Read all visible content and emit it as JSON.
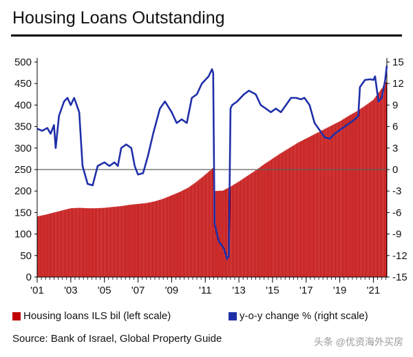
{
  "colors": {
    "bar": "#c00000",
    "line": "#1f2fa8",
    "axis": "#000000",
    "zero_line": "#606060"
  },
  "chart_data": {
    "type": "bar",
    "title": "Housing Loans Outstanding",
    "x_tick_labels": [
      "'01",
      "'03",
      "'05",
      "'07",
      "'09",
      "'11",
      "'13",
      "'15",
      "'17",
      "'19",
      "'21"
    ],
    "left_axis": {
      "ticks": [
        0,
        50,
        100,
        150,
        200,
        250,
        300,
        350,
        400,
        450,
        500
      ],
      "ylim": [
        0,
        500
      ]
    },
    "right_axis": {
      "ticks": [
        -15,
        -12,
        -9,
        -6,
        -3,
        0,
        3,
        6,
        9,
        12,
        15
      ],
      "ylim": [
        -15,
        15
      ]
    },
    "series": [
      {
        "name": "Housing loans ILS bil (left scale)",
        "type": "bar",
        "axis": "left",
        "x": [
          2001.0,
          2001.5,
          2002.0,
          2002.5,
          2003.0,
          2003.5,
          2004.0,
          2004.5,
          2005.0,
          2005.5,
          2006.0,
          2006.5,
          2007.0,
          2007.5,
          2008.0,
          2008.5,
          2009.0,
          2009.5,
          2010.0,
          2010.5,
          2011.0,
          2011.5,
          2012.0,
          2012.5,
          2013.0,
          2013.5,
          2014.0,
          2014.5,
          2015.0,
          2015.5,
          2016.0,
          2016.5,
          2017.0,
          2017.5,
          2018.0,
          2018.5,
          2019.0,
          2019.5,
          2020.0,
          2020.5,
          2021.0,
          2021.5,
          2021.8
        ],
        "values": [
          141,
          145,
          150,
          155,
          160,
          161,
          160,
          160,
          161,
          163,
          165,
          168,
          170,
          172,
          176,
          182,
          190,
          198,
          208,
          222,
          238,
          255,
          200,
          210,
          222,
          235,
          248,
          262,
          275,
          288,
          300,
          312,
          322,
          332,
          342,
          352,
          362,
          374,
          385,
          398,
          412,
          438,
          456
        ]
      },
      {
        "name": "y-o-y change % (right scale)",
        "type": "line",
        "axis": "right",
        "x": [
          2001.0,
          2001.3,
          2001.6,
          2001.8,
          2002.0,
          2002.1,
          2002.3,
          2002.6,
          2002.8,
          2003.0,
          2003.2,
          2003.5,
          2003.7,
          2004.0,
          2004.3,
          2004.6,
          2005.0,
          2005.3,
          2005.6,
          2005.8,
          2006.0,
          2006.3,
          2006.6,
          2006.8,
          2007.0,
          2007.3,
          2007.6,
          2007.9,
          2008.3,
          2008.6,
          2009.0,
          2009.3,
          2009.6,
          2009.9,
          2010.2,
          2010.5,
          2010.8,
          2011.0,
          2011.2,
          2011.4,
          2011.47,
          2011.55,
          2011.8,
          2012.1,
          2012.3,
          2012.4,
          2012.5,
          2012.6,
          2012.9,
          2013.3,
          2013.6,
          2014.0,
          2014.3,
          2014.6,
          2014.9,
          2015.2,
          2015.5,
          2015.8,
          2016.1,
          2016.4,
          2016.7,
          2016.9,
          2017.2,
          2017.5,
          2017.8,
          2018.1,
          2018.4,
          2018.7,
          2019.0,
          2019.3,
          2019.6,
          2019.9,
          2020.1,
          2020.2,
          2020.5,
          2020.8,
          2021.0,
          2021.1,
          2021.3,
          2021.5,
          2021.7,
          2021.8
        ],
        "values": [
          5.7,
          5.4,
          5.8,
          5.0,
          6.2,
          3.0,
          7.5,
          9.5,
          10.0,
          9.0,
          10.0,
          8.0,
          0.5,
          -2.0,
          -2.2,
          0.5,
          1.0,
          0.5,
          1.0,
          0.5,
          3.0,
          3.5,
          3.0,
          0.5,
          -0.7,
          -0.5,
          2.0,
          5.0,
          8.5,
          9.5,
          8.0,
          6.5,
          7.0,
          6.5,
          10.0,
          10.5,
          12.0,
          12.5,
          13.0,
          14.0,
          13.5,
          -7.5,
          -10.0,
          -11.0,
          -12.5,
          -12.0,
          8.5,
          9.0,
          9.5,
          10.5,
          11.0,
          10.5,
          9.0,
          8.5,
          8.0,
          8.5,
          8.0,
          9.0,
          10.0,
          10.0,
          9.8,
          10.0,
          9.0,
          6.5,
          5.5,
          4.5,
          4.3,
          5.0,
          5.5,
          6.0,
          6.5,
          7.0,
          7.5,
          11.5,
          12.5,
          12.6,
          12.5,
          13.0,
          9.5,
          10.0,
          12.5,
          14.5
        ]
      }
    ]
  },
  "legend": {
    "bar_label": "Housing loans ILS bil (left scale)",
    "line_label": "y-o-y change % (right scale)"
  },
  "source": "Source: Bank of Israel, Global Property Guide",
  "watermark": "头条 @优资海外买房"
}
